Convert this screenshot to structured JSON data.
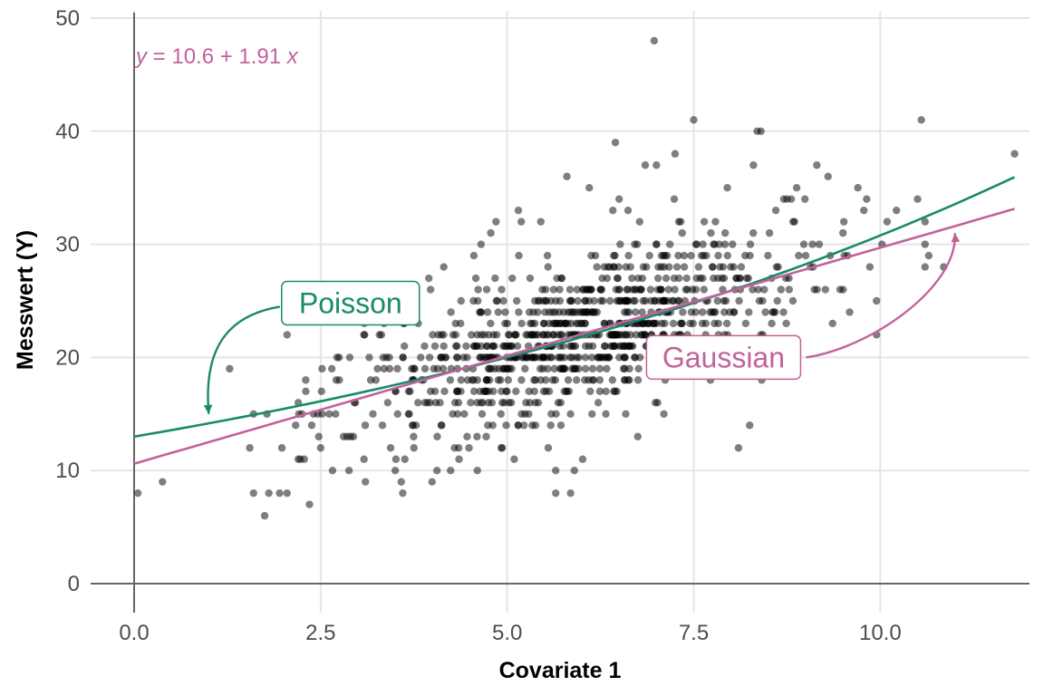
{
  "chart_data": {
    "type": "scatter",
    "title": "",
    "xlabel": "Covariate 1",
    "ylabel": "Messwert (Y)",
    "xlim": [
      0,
      12
    ],
    "ylim": [
      0,
      50
    ],
    "x_ticks": [
      0,
      2.5,
      5,
      7.5,
      10
    ],
    "x_tick_labels": [
      "0.0",
      "2.5",
      "5.0",
      "7.5",
      "10.0"
    ],
    "y_ticks": [
      0,
      10,
      20,
      30,
      40,
      50
    ],
    "y_tick_labels": [
      "0",
      "10",
      "20",
      "30",
      "40",
      "50"
    ],
    "grid": true,
    "equation": {
      "y": "y",
      "eq": " = 10.6 + 1.91 ",
      "x": "x",
      "color": "#C2629B"
    },
    "fits": [
      {
        "name": "Poisson",
        "color": "#1A8A6A",
        "family": "log-linear",
        "intercept": 13.0,
        "slope": 0.0862,
        "x_range": [
          0,
          11.8
        ]
      },
      {
        "name": "Gaussian",
        "color": "#C2629B",
        "family": "linear",
        "intercept": 10.6,
        "slope": 1.91,
        "x_range": [
          0,
          11.8
        ]
      }
    ],
    "labels": [
      {
        "text": "Poisson",
        "color": "#1A8A6A",
        "x": 2.9,
        "y": 24.8,
        "arrow_to": [
          1.0,
          15.0
        ]
      },
      {
        "text": "Gaussian",
        "color": "#C2629B",
        "x": 7.9,
        "y": 20.0,
        "arrow_to": [
          11.0,
          31.0
        ]
      }
    ],
    "points_description": "approximately 1000 observations",
    "points": [
      [
        0.05,
        8
      ],
      [
        0.38,
        9
      ],
      [
        1.28,
        19
      ],
      [
        1.55,
        12
      ],
      [
        1.6,
        15
      ],
      [
        1.75,
        6
      ],
      [
        1.78,
        15
      ],
      [
        1.95,
        8
      ],
      [
        1.98,
        12
      ],
      [
        2.05,
        8
      ],
      [
        2.05,
        22
      ],
      [
        2.2,
        11
      ],
      [
        2.2,
        16
      ],
      [
        2.25,
        15
      ],
      [
        2.3,
        18
      ],
      [
        2.35,
        7
      ],
      [
        2.28,
        11
      ],
      [
        2.38,
        14
      ],
      [
        2.5,
        12
      ],
      [
        2.65,
        19
      ],
      [
        2.7,
        15
      ],
      [
        2.75,
        18
      ],
      [
        2.88,
        10
      ],
      [
        2.9,
        13
      ],
      [
        3.1,
        9
      ],
      [
        3.2,
        15
      ],
      [
        3.35,
        23
      ],
      [
        3.5,
        10
      ],
      [
        3.58,
        9
      ],
      [
        3.6,
        8
      ],
      [
        3.75,
        12
      ],
      [
        3.85,
        18
      ],
      [
        3.95,
        27
      ],
      [
        4.15,
        28
      ],
      [
        4.35,
        12
      ],
      [
        4.6,
        10
      ],
      [
        4.65,
        30
      ],
      [
        4.78,
        31
      ],
      [
        4.85,
        32
      ],
      [
        5.05,
        20
      ],
      [
        5.15,
        33
      ],
      [
        5.45,
        32
      ],
      [
        5.55,
        12
      ],
      [
        5.65,
        10
      ],
      [
        5.8,
        36
      ],
      [
        5.85,
        8
      ],
      [
        5.9,
        10
      ],
      [
        6.1,
        35
      ],
      [
        6.3,
        28
      ],
      [
        6.45,
        39
      ],
      [
        6.5,
        34
      ],
      [
        6.62,
        33
      ],
      [
        6.75,
        13
      ],
      [
        6.85,
        37
      ],
      [
        6.97,
        48
      ],
      [
        7.0,
        37
      ],
      [
        7.1,
        15
      ],
      [
        7.25,
        38
      ],
      [
        7.5,
        41
      ],
      [
        7.85,
        28
      ],
      [
        7.95,
        35
      ],
      [
        8.1,
        12
      ],
      [
        8.25,
        14
      ],
      [
        8.3,
        37
      ],
      [
        8.35,
        40
      ],
      [
        8.4,
        40
      ],
      [
        8.6,
        33
      ],
      [
        8.75,
        34
      ],
      [
        8.88,
        35
      ],
      [
        9.0,
        29
      ],
      [
        9.15,
        37
      ],
      [
        9.3,
        36
      ],
      [
        9.5,
        31
      ],
      [
        9.7,
        35
      ],
      [
        9.78,
        33
      ],
      [
        9.95,
        25
      ],
      [
        9.95,
        22
      ],
      [
        10.5,
        34
      ],
      [
        10.55,
        41
      ],
      [
        10.6,
        28
      ],
      [
        10.65,
        29
      ],
      [
        10.85,
        28
      ],
      [
        11.8,
        38
      ]
    ]
  }
}
